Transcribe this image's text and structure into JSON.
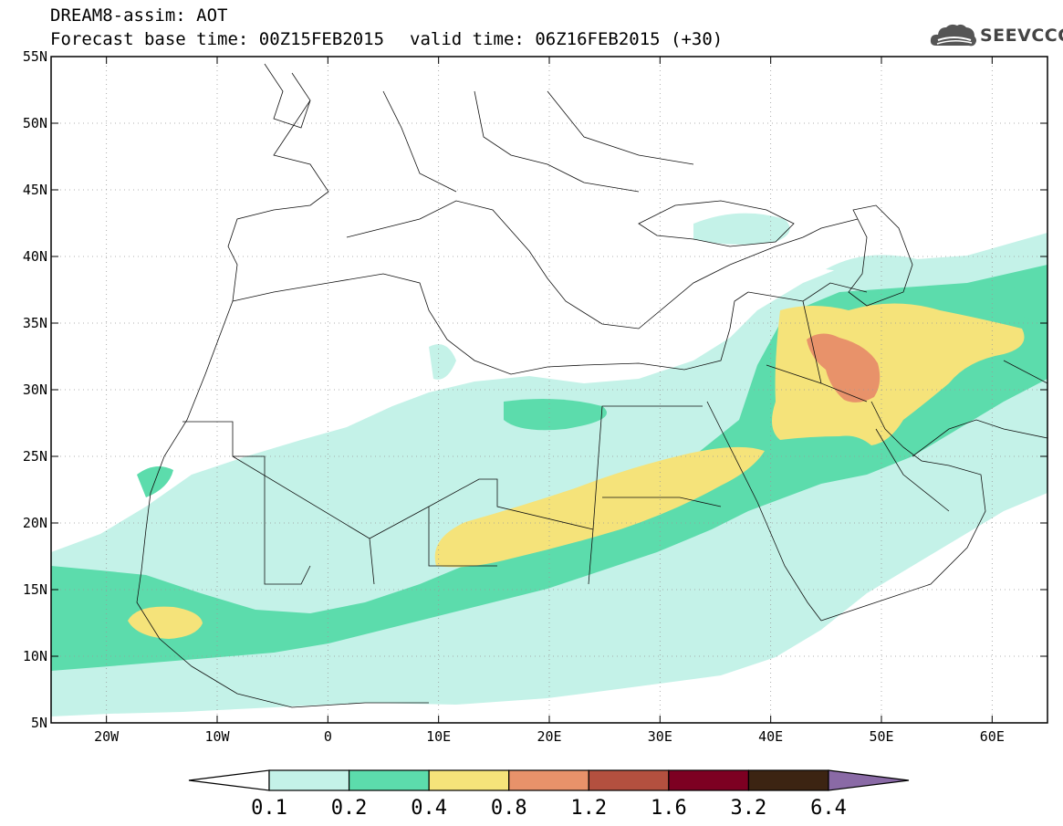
{
  "header": {
    "model_line": "DREAM8-assim: AOT",
    "base_time_label": "Forecast base time: 00Z15FEB2015",
    "valid_time_label": "valid time: 06Z16FEB2015 (+30)",
    "logo_text": "SEEVCCC",
    "logo_icon": "cloud-icon"
  },
  "map": {
    "lon_range": [
      -25,
      65
    ],
    "lat_range": [
      5,
      55
    ],
    "lat_ticks": [
      {
        "value": 5,
        "label": "5N"
      },
      {
        "value": 10,
        "label": "10N"
      },
      {
        "value": 15,
        "label": "15N"
      },
      {
        "value": 20,
        "label": "20N"
      },
      {
        "value": 25,
        "label": "25N"
      },
      {
        "value": 30,
        "label": "30N"
      },
      {
        "value": 35,
        "label": "35N"
      },
      {
        "value": 40,
        "label": "40N"
      },
      {
        "value": 45,
        "label": "45N"
      },
      {
        "value": 50,
        "label": "50N"
      },
      {
        "value": 55,
        "label": "55N"
      }
    ],
    "lon_ticks": [
      {
        "value": -20,
        "label": "20W"
      },
      {
        "value": -10,
        "label": "10W"
      },
      {
        "value": 0,
        "label": "0"
      },
      {
        "value": 10,
        "label": "10E"
      },
      {
        "value": 20,
        "label": "20E"
      },
      {
        "value": 30,
        "label": "30E"
      },
      {
        "value": 40,
        "label": "40E"
      },
      {
        "value": 50,
        "label": "50E"
      },
      {
        "value": 60,
        "label": "60E"
      }
    ],
    "grid": "dotted"
  },
  "colorbar": {
    "levels": [
      "0.1",
      "0.2",
      "0.4",
      "0.8",
      "1.2",
      "1.6",
      "3.2",
      "6.4"
    ],
    "colors": [
      "#ffffff",
      "#c4f2e8",
      "#5cdcac",
      "#f5e37a",
      "#e8926a",
      "#b3503f",
      "#7d0022",
      "#3c2412",
      "#8a6aa6"
    ]
  }
}
